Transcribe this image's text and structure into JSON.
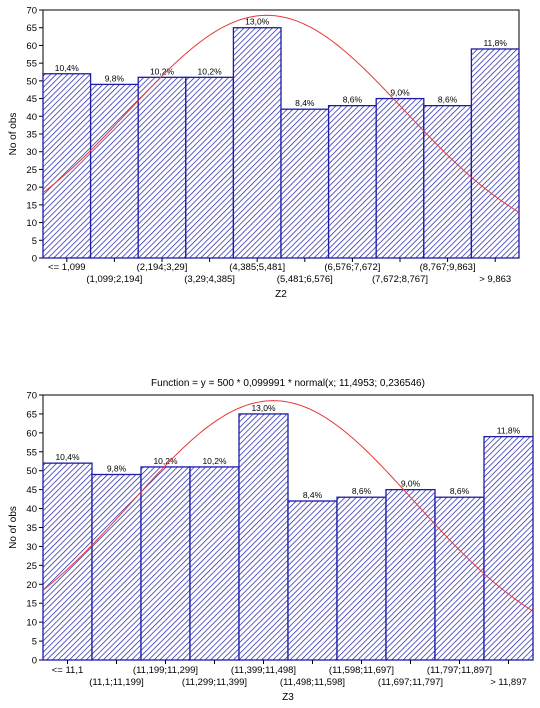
{
  "chart_data": [
    {
      "type": "bar",
      "title": "",
      "xlabel": "Z2",
      "ylabel": "No of obs",
      "ylim": [
        0,
        70
      ],
      "yticks": [
        0,
        5,
        10,
        15,
        20,
        25,
        30,
        35,
        40,
        45,
        50,
        55,
        60,
        65,
        70
      ],
      "categories": [
        "<= 1,099",
        "(1,099;2,194]",
        "(2,194;3,29]",
        "(3,29;4,385]",
        "(4,385;5,481]",
        "(5,481;6,576]",
        "(6,576;7,672]",
        "(7,672;8,767]",
        "(8,767;9,863]",
        "> 9,863"
      ],
      "values": [
        52,
        49,
        51,
        51,
        65,
        42,
        43,
        45,
        43,
        59
      ],
      "data_labels": [
        "10,4%",
        "9,8%",
        "10,2%",
        "10,2%",
        "13,0%",
        "8,4%",
        "8,6%",
        "9,0%",
        "8,6%",
        "11,8%"
      ],
      "normal_curve": {
        "peak": 68.5,
        "peak_bin": 4.7,
        "sigma_bins": 2.9
      },
      "bar_fill": "hatched",
      "bar_color": "#1c1ca8",
      "curve_color": "#e8383a",
      "grid": false
    },
    {
      "type": "bar",
      "title": "",
      "top_text": "Function = y = 500 * 0,099991 * normal(x; 11,4953; 0,236546)",
      "xlabel": "Z3",
      "ylabel": "No of obs",
      "ylim": [
        0,
        70
      ],
      "yticks": [
        0,
        5,
        10,
        15,
        20,
        25,
        30,
        35,
        40,
        45,
        50,
        55,
        60,
        65,
        70
      ],
      "categories": [
        "<= 11,1",
        "(11,1;11,199]",
        "(11,199;11,299]",
        "(11,299;11,399]",
        "(11,399;11,498]",
        "(11,498;11,598]",
        "(11,598;11,697]",
        "(11,697;11,797]",
        "(11,797;11,897]",
        "> 11,897"
      ],
      "values": [
        52,
        49,
        51,
        51,
        65,
        42,
        43,
        45,
        43,
        59
      ],
      "data_labels": [
        "10,4%",
        "9,8%",
        "10,2%",
        "10,2%",
        "13,0%",
        "8,4%",
        "8,6%",
        "9,0%",
        "8,6%",
        "11,8%"
      ],
      "normal_curve": {
        "peak": 68.5,
        "peak_bin": 4.7,
        "sigma_bins": 2.9
      },
      "bar_fill": "hatched",
      "bar_color": "#1c1ca8",
      "curve_color": "#e8383a",
      "grid": false
    }
  ]
}
